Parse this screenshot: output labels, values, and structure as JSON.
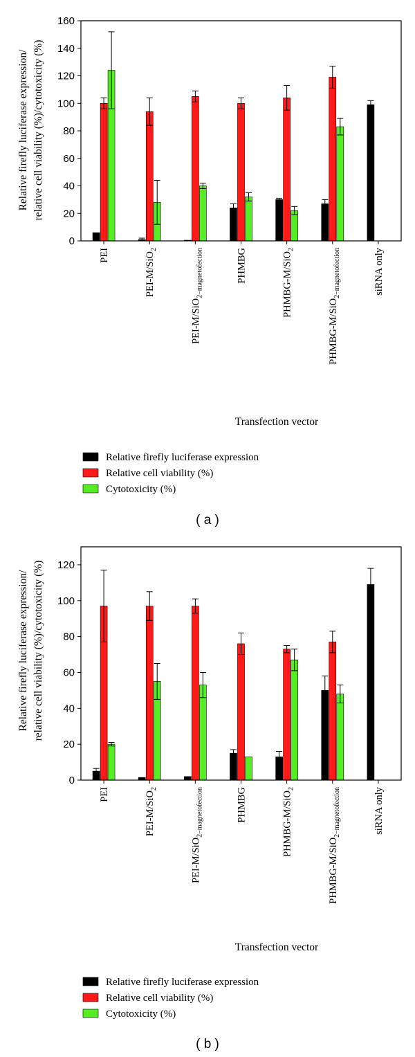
{
  "chart_data": [
    {
      "type": "bar",
      "panel_label": "( a )",
      "ylabel_lines": [
        "Relative firefly luciferase expression/",
        "relative cell viability (%)/cytotoxicity (%)"
      ],
      "xlabel": "Transfection vector",
      "ylim": [
        0,
        160
      ],
      "yticks": [
        0,
        20,
        40,
        60,
        80,
        100,
        120,
        140,
        160
      ],
      "categories": [
        {
          "base": "PEI",
          "sub": "",
          "rest": ""
        },
        {
          "base": "PEI-M/SiO",
          "sub": "2",
          "rest": ""
        },
        {
          "base": "PEI-M/SiO",
          "sub": "2",
          "rest": "−magnetofection"
        },
        {
          "base": "PHMBG",
          "sub": "",
          "rest": ""
        },
        {
          "base": "PHMBG-M/SiO",
          "sub": "2",
          "rest": ""
        },
        {
          "base": "PHMBG-M/SiO",
          "sub": "2",
          "rest": "−magnetofection"
        },
        {
          "base": "siRNA only",
          "sub": "",
          "rest": ""
        }
      ],
      "series": [
        {
          "name": "Relative firefly luciferase expression",
          "color": "#000000",
          "values": [
            6,
            1,
            0.5,
            24,
            30,
            27,
            99
          ],
          "errors": [
            0,
            1,
            0,
            3,
            1,
            3,
            3
          ]
        },
        {
          "name": "Relative cell viability (%)",
          "color": "#ff1a1a",
          "values": [
            100,
            94,
            105,
            100,
            104,
            119,
            0
          ],
          "errors": [
            4,
            10,
            4,
            4,
            9,
            8,
            0
          ]
        },
        {
          "name": "Cytotoxicity (%)",
          "color": "#55ee22",
          "values": [
            124,
            28,
            40,
            32,
            22,
            83,
            0
          ],
          "errors": [
            28,
            16,
            2,
            3,
            3,
            6,
            0
          ]
        }
      ],
      "grid": false,
      "legend": "below"
    },
    {
      "type": "bar",
      "panel_label": "( b )",
      "ylabel_lines": [
        "Relative firefly luciferase expression/",
        "relative cell viability (%)/cytotoxicity (%)"
      ],
      "xlabel": "Transfection vector",
      "ylim": [
        0,
        130
      ],
      "yticks": [
        0,
        20,
        40,
        60,
        80,
        100,
        120
      ],
      "categories": [
        {
          "base": "PEI",
          "sub": "",
          "rest": ""
        },
        {
          "base": "PEI-M/SiO",
          "sub": "2",
          "rest": ""
        },
        {
          "base": "PEI-M/SiO",
          "sub": "2",
          "rest": "−magnetofection"
        },
        {
          "base": "PHMBG",
          "sub": "",
          "rest": ""
        },
        {
          "base": "PHMBG-M/SiO",
          "sub": "2",
          "rest": ""
        },
        {
          "base": "PHMBG-M/SiO",
          "sub": "2",
          "rest": "−magnetofection"
        },
        {
          "base": "siRNA only",
          "sub": "",
          "rest": ""
        }
      ],
      "series": [
        {
          "name": "Relative firefly luciferase expression",
          "color": "#000000",
          "values": [
            5,
            1.5,
            2,
            15,
            13,
            50,
            109
          ],
          "errors": [
            1.5,
            0,
            0,
            2,
            3,
            8,
            9
          ]
        },
        {
          "name": "Relative cell viability (%)",
          "color": "#ff1a1a",
          "values": [
            97,
            97,
            97,
            76,
            73,
            77,
            0
          ],
          "errors": [
            20,
            8,
            4,
            6,
            2,
            6,
            0
          ]
        },
        {
          "name": "Cytotoxicity (%)",
          "color": "#55ee22",
          "values": [
            20,
            55,
            53,
            13,
            67,
            48,
            0
          ],
          "errors": [
            1,
            10,
            7,
            0,
            6,
            5,
            0
          ]
        }
      ],
      "grid": false,
      "legend": "below"
    }
  ]
}
